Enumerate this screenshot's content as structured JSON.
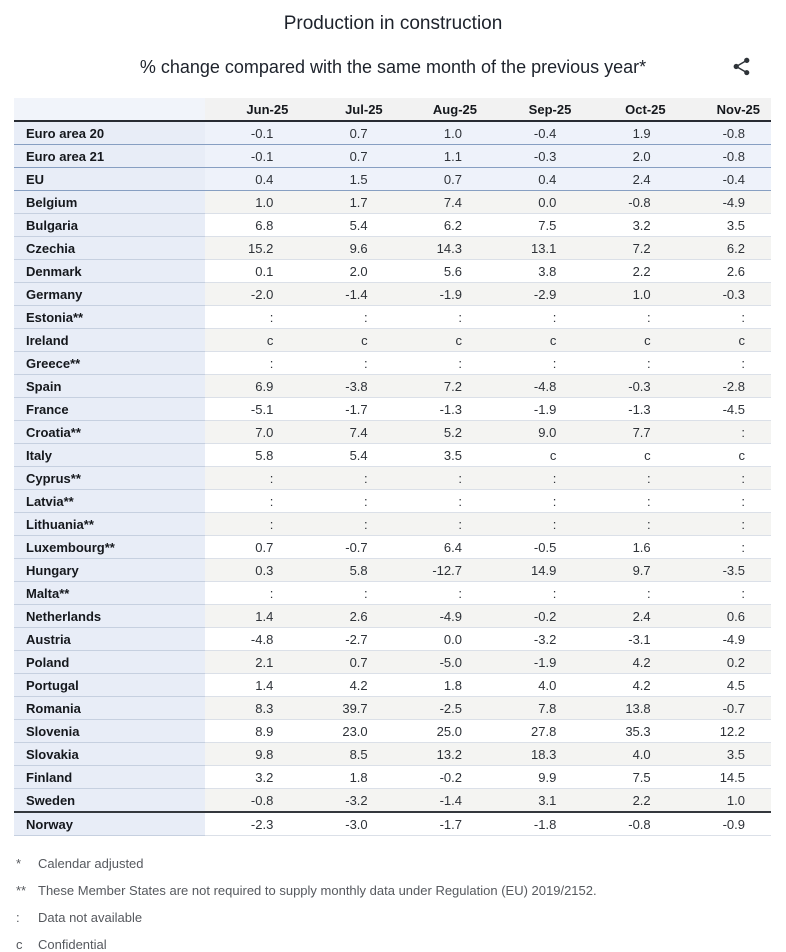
{
  "header": {
    "title": "Production in construction",
    "subtitle": "% change compared with the same month of the previous year*"
  },
  "chart_data": {
    "type": "table",
    "title": "Production in construction",
    "subtitle": "% change compared with the same month of the previous year*",
    "columns": [
      "Jun-25",
      "Jul-25",
      "Aug-25",
      "Sep-25",
      "Oct-25",
      "Nov-25"
    ],
    "rows": [
      {
        "label": "Euro area 20",
        "type": "aggregate",
        "group": "eu",
        "values": [
          "-0.1",
          "0.7",
          "1.0",
          "-0.4",
          "1.9",
          "-0.8"
        ]
      },
      {
        "label": "Euro area 21",
        "type": "aggregate",
        "group": "eu",
        "values": [
          "-0.1",
          "0.7",
          "1.1",
          "-0.3",
          "2.0",
          "-0.8"
        ]
      },
      {
        "label": "EU",
        "type": "aggregate",
        "group": "eu",
        "values": [
          "0.4",
          "1.5",
          "0.7",
          "0.4",
          "2.4",
          "-0.4"
        ]
      },
      {
        "label": "Belgium",
        "type": "country",
        "group": "eu",
        "values": [
          "1.0",
          "1.7",
          "7.4",
          "0.0",
          "-0.8",
          "-4.9"
        ]
      },
      {
        "label": "Bulgaria",
        "type": "country",
        "group": "eu",
        "values": [
          "6.8",
          "5.4",
          "6.2",
          "7.5",
          "3.2",
          "3.5"
        ]
      },
      {
        "label": "Czechia",
        "type": "country",
        "group": "eu",
        "values": [
          "15.2",
          "9.6",
          "14.3",
          "13.1",
          "7.2",
          "6.2"
        ]
      },
      {
        "label": "Denmark",
        "type": "country",
        "group": "eu",
        "values": [
          "0.1",
          "2.0",
          "5.6",
          "3.8",
          "2.2",
          "2.6"
        ]
      },
      {
        "label": "Germany",
        "type": "country",
        "group": "eu",
        "values": [
          "-2.0",
          "-1.4",
          "-1.9",
          "-2.9",
          "1.0",
          "-0.3"
        ]
      },
      {
        "label": "Estonia**",
        "type": "country",
        "group": "eu",
        "values": [
          ":",
          ":",
          ":",
          ":",
          ":",
          ":"
        ]
      },
      {
        "label": "Ireland",
        "type": "country",
        "group": "eu",
        "values": [
          "c",
          "c",
          "c",
          "c",
          "c",
          "c"
        ]
      },
      {
        "label": "Greece**",
        "type": "country",
        "group": "eu",
        "values": [
          ":",
          ":",
          ":",
          ":",
          ":",
          ":"
        ]
      },
      {
        "label": "Spain",
        "type": "country",
        "group": "eu",
        "values": [
          "6.9",
          "-3.8",
          "7.2",
          "-4.8",
          "-0.3",
          "-2.8"
        ]
      },
      {
        "label": "France",
        "type": "country",
        "group": "eu",
        "values": [
          "-5.1",
          "-1.7",
          "-1.3",
          "-1.9",
          "-1.3",
          "-4.5"
        ]
      },
      {
        "label": "Croatia**",
        "type": "country",
        "group": "eu",
        "values": [
          "7.0",
          "7.4",
          "5.2",
          "9.0",
          "7.7",
          ":"
        ]
      },
      {
        "label": "Italy",
        "type": "country",
        "group": "eu",
        "values": [
          "5.8",
          "5.4",
          "3.5",
          "c",
          "c",
          "c"
        ]
      },
      {
        "label": "Cyprus**",
        "type": "country",
        "group": "eu",
        "values": [
          ":",
          ":",
          ":",
          ":",
          ":",
          ":"
        ]
      },
      {
        "label": "Latvia**",
        "type": "country",
        "group": "eu",
        "values": [
          ":",
          ":",
          ":",
          ":",
          ":",
          ":"
        ]
      },
      {
        "label": "Lithuania**",
        "type": "country",
        "group": "eu",
        "values": [
          ":",
          ":",
          ":",
          ":",
          ":",
          ":"
        ]
      },
      {
        "label": "Luxembourg**",
        "type": "country",
        "group": "eu",
        "values": [
          "0.7",
          "-0.7",
          "6.4",
          "-0.5",
          "1.6",
          ":"
        ]
      },
      {
        "label": "Hungary",
        "type": "country",
        "group": "eu",
        "values": [
          "0.3",
          "5.8",
          "-12.7",
          "14.9",
          "9.7",
          "-3.5"
        ]
      },
      {
        "label": "Malta**",
        "type": "country",
        "group": "eu",
        "values": [
          ":",
          ":",
          ":",
          ":",
          ":",
          ":"
        ]
      },
      {
        "label": "Netherlands",
        "type": "country",
        "group": "eu",
        "values": [
          "1.4",
          "2.6",
          "-4.9",
          "-0.2",
          "2.4",
          "0.6"
        ]
      },
      {
        "label": "Austria",
        "type": "country",
        "group": "eu",
        "values": [
          "-4.8",
          "-2.7",
          "0.0",
          "-3.2",
          "-3.1",
          "-4.9"
        ]
      },
      {
        "label": "Poland",
        "type": "country",
        "group": "eu",
        "values": [
          "2.1",
          "0.7",
          "-5.0",
          "-1.9",
          "4.2",
          "0.2"
        ]
      },
      {
        "label": "Portugal",
        "type": "country",
        "group": "eu",
        "values": [
          "1.4",
          "4.2",
          "1.8",
          "4.0",
          "4.2",
          "4.5"
        ]
      },
      {
        "label": "Romania",
        "type": "country",
        "group": "eu",
        "values": [
          "8.3",
          "39.7",
          "-2.5",
          "7.8",
          "13.8",
          "-0.7"
        ]
      },
      {
        "label": "Slovenia",
        "type": "country",
        "group": "eu",
        "values": [
          "8.9",
          "23.0",
          "25.0",
          "27.8",
          "35.3",
          "12.2"
        ]
      },
      {
        "label": "Slovakia",
        "type": "country",
        "group": "eu",
        "values": [
          "9.8",
          "8.5",
          "13.2",
          "18.3",
          "4.0",
          "3.5"
        ]
      },
      {
        "label": "Finland",
        "type": "country",
        "group": "eu",
        "values": [
          "3.2",
          "1.8",
          "-0.2",
          "9.9",
          "7.5",
          "14.5"
        ]
      },
      {
        "label": "Sweden",
        "type": "country",
        "group": "eu",
        "values": [
          "-0.8",
          "-3.2",
          "-1.4",
          "3.1",
          "2.2",
          "1.0"
        ]
      },
      {
        "label": "Norway",
        "type": "country",
        "group": "non-eu",
        "values": [
          "-2.3",
          "-3.0",
          "-1.7",
          "-1.8",
          "-0.8",
          "-0.9"
        ]
      }
    ]
  },
  "footnotes": [
    {
      "symbol": "*",
      "text": "Calendar adjusted"
    },
    {
      "symbol": "**",
      "text": "These Member States are not required to supply monthly data under Regulation (EU) 2019/2152."
    },
    {
      "symbol": ":",
      "text": "Data not available"
    },
    {
      "symbol": "c",
      "text": "Confidential"
    }
  ],
  "colors": {
    "label_column_bg": "#e8edf7",
    "aggregate_row_bg": "#eef2fa",
    "aggregate_border": "#879fc2",
    "shaded_row_bg": "#f4f4f2",
    "header_row_bg": "#f2f2f2",
    "header_border": "#282c33",
    "separator_border": "#34383d",
    "icon_color": "#2e3338"
  }
}
